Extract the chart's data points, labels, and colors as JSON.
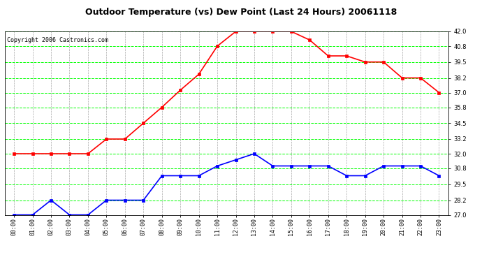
{
  "title": "Outdoor Temperature (vs) Dew Point (Last 24 Hours) 20061118",
  "copyright": "Copyright 2006 Castronics.com",
  "hours": [
    "00:00",
    "01:00",
    "02:00",
    "03:00",
    "04:00",
    "05:00",
    "06:00",
    "07:00",
    "08:00",
    "09:00",
    "10:00",
    "11:00",
    "12:00",
    "13:00",
    "14:00",
    "15:00",
    "16:00",
    "17:00",
    "18:00",
    "19:00",
    "20:00",
    "21:00",
    "22:00",
    "23:00"
  ],
  "temp": [
    32.0,
    32.0,
    32.0,
    32.0,
    32.0,
    33.2,
    33.2,
    34.5,
    35.8,
    37.2,
    38.5,
    40.8,
    42.0,
    42.0,
    42.0,
    42.0,
    41.3,
    40.0,
    40.0,
    39.5,
    39.5,
    38.2,
    38.2,
    37.0
  ],
  "dew": [
    27.0,
    27.0,
    28.2,
    27.0,
    27.0,
    28.2,
    28.2,
    28.2,
    30.2,
    30.2,
    30.2,
    31.0,
    31.5,
    32.0,
    31.0,
    31.0,
    31.0,
    31.0,
    30.2,
    30.2,
    31.0,
    31.0,
    31.0,
    30.2
  ],
  "temp_color": "#ff0000",
  "dew_color": "#0000ff",
  "grid_color_h": "#00ff00",
  "grid_color_v": "#aaaaaa",
  "bg_color": "#ffffff",
  "plot_bg": "#ffffff",
  "ylim_min": 27.0,
  "ylim_max": 42.0,
  "yticks": [
    27.0,
    28.2,
    29.5,
    30.8,
    32.0,
    33.2,
    34.5,
    35.8,
    37.0,
    38.2,
    39.5,
    40.8,
    42.0
  ],
  "marker": "s",
  "marker_size": 3,
  "linewidth": 1.2,
  "title_fontsize": 9,
  "tick_fontsize": 6,
  "copyright_fontsize": 6
}
